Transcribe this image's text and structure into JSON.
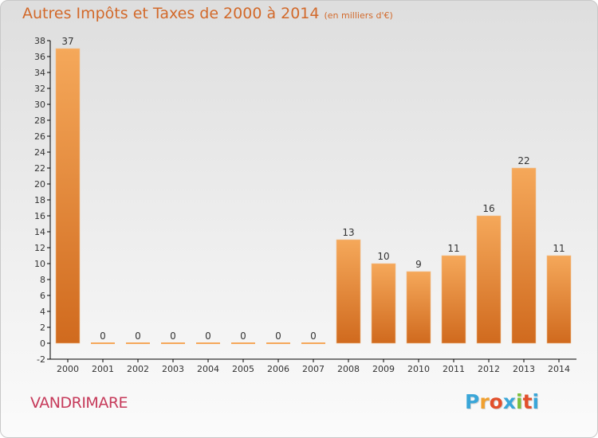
{
  "title": "Autres Impôts et Taxes de 2000 à 2014",
  "subtitle": "(en milliers d'€)",
  "commune": "VANDRIMARE",
  "logo": {
    "letters": [
      "P",
      "r",
      "o",
      "x",
      "i",
      "t",
      "i"
    ],
    "colors": [
      "#3aa6d8",
      "#f0a030",
      "#e24f2b",
      "#3aa6d8",
      "#7cbf3c",
      "#e24f2b",
      "#3aa6d8"
    ]
  },
  "colors": {
    "title": "#d2692a",
    "commune": "#c63a5a",
    "bar_light": "#f5a85a",
    "bar_dark": "#d06a1e",
    "axis": "#000000"
  },
  "chart_data": {
    "type": "bar",
    "categories": [
      "2000",
      "2001",
      "2002",
      "2003",
      "2004",
      "2005",
      "2006",
      "2007",
      "2008",
      "2009",
      "2010",
      "2011",
      "2012",
      "2013",
      "2014"
    ],
    "values": [
      37,
      0,
      0,
      0,
      0,
      0,
      0,
      0,
      13,
      10,
      9,
      11,
      16,
      22,
      11
    ],
    "data_labels": [
      "37",
      "0",
      "0",
      "0",
      "0",
      "0",
      "0",
      "0",
      "13",
      "10",
      "9",
      "11",
      "16",
      "22",
      "11"
    ],
    "ylim": [
      -2,
      38
    ],
    "yticks": [
      -2,
      0,
      2,
      4,
      6,
      8,
      10,
      12,
      14,
      16,
      18,
      20,
      22,
      24,
      26,
      28,
      30,
      32,
      34,
      36,
      38
    ],
    "xlabel": "",
    "ylabel": "",
    "grid": false
  }
}
